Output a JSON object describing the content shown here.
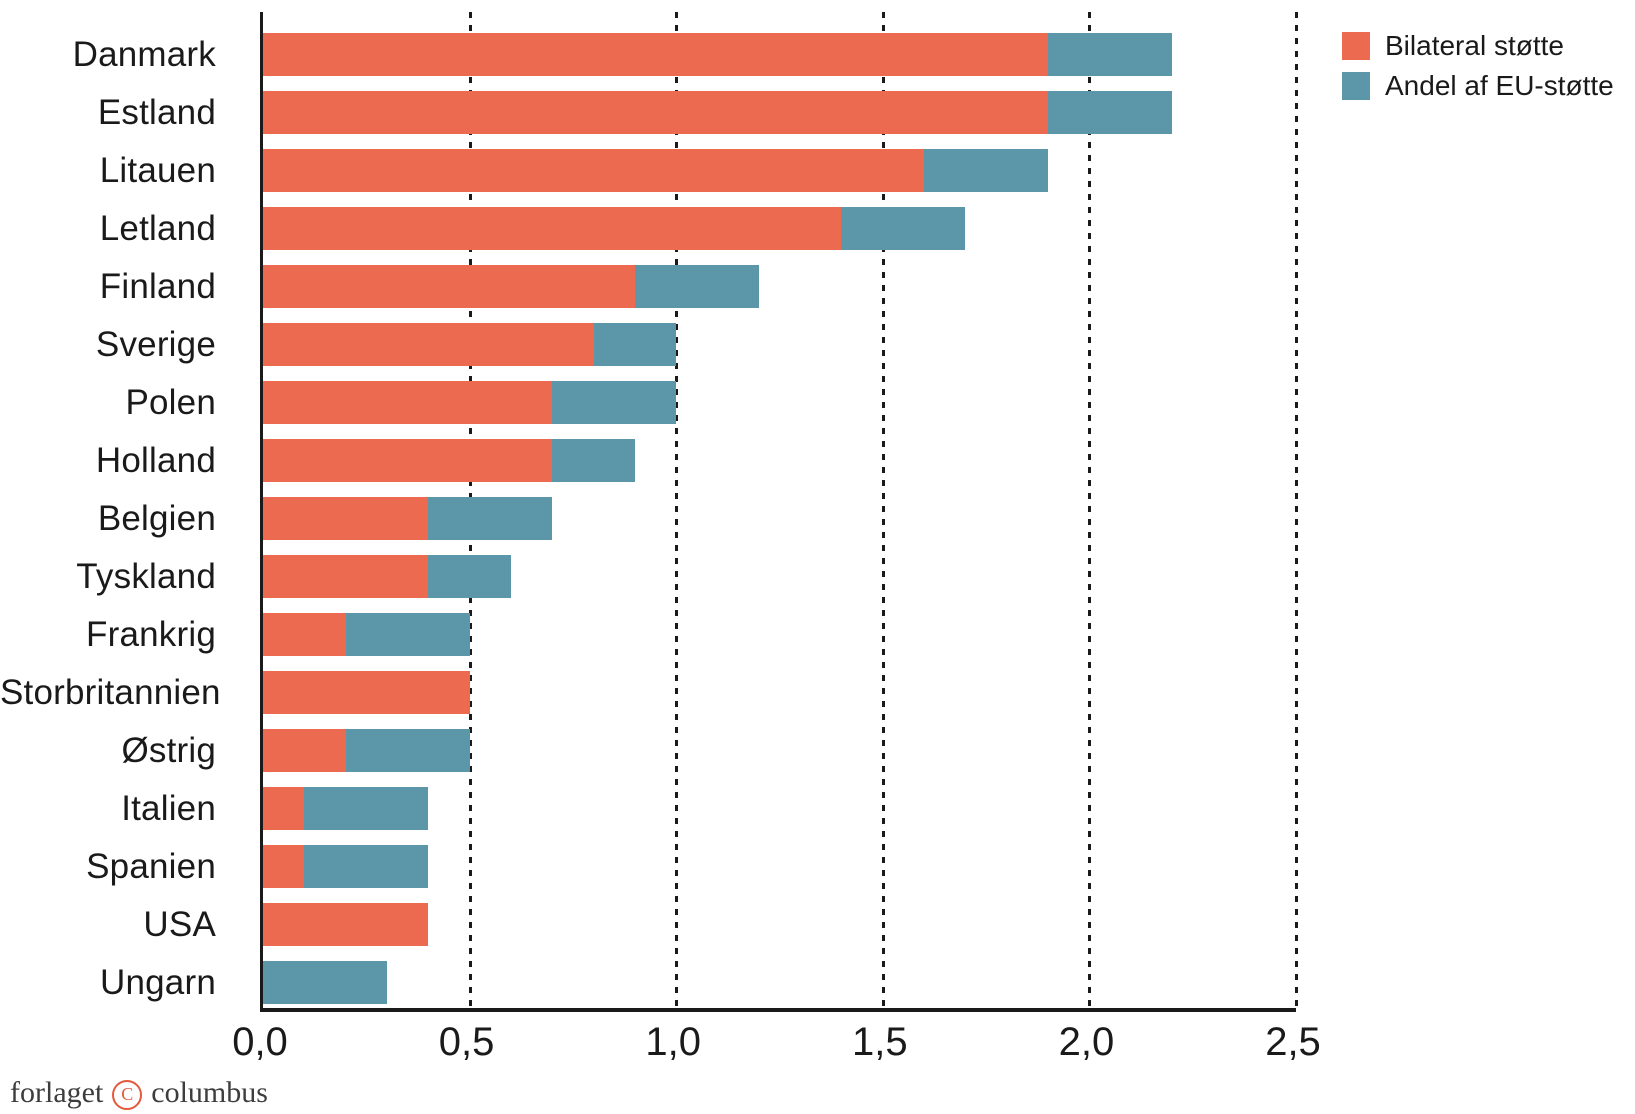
{
  "legend": {
    "items": [
      {
        "label": "Bilateral støtte",
        "color": "#EC6A4F"
      },
      {
        "label": "Andel af EU-støtte",
        "color": "#5B97A9"
      }
    ]
  },
  "footer": {
    "word_left": "forlaget",
    "copyright_letter": "C",
    "word_right": "columbus",
    "accent_color": "#e4593b"
  },
  "chart_data": {
    "type": "bar",
    "orientation": "horizontal",
    "stacked": true,
    "title": "",
    "xlabel": "",
    "ylabel": "",
    "xlim": [
      0,
      2.5
    ],
    "grid": "vertical-dashed",
    "legend_position": "top-right",
    "categories": [
      "Danmark",
      "Estland",
      "Litauen",
      "Letland",
      "Finland",
      "Sverige",
      "Polen",
      "Holland",
      "Belgien",
      "Tyskland",
      "Frankrig",
      "Storbritannien",
      "Østrig",
      "Italien",
      "Spanien",
      "USA",
      "Ungarn"
    ],
    "series": [
      {
        "name": "Bilateral støtte",
        "color": "#EC6A4F",
        "values": [
          1.9,
          1.9,
          1.6,
          1.4,
          0.9,
          0.8,
          0.7,
          0.7,
          0.4,
          0.4,
          0.2,
          0.5,
          0.2,
          0.1,
          0.1,
          0.4,
          0.0
        ]
      },
      {
        "name": "Andel af EU-støtte",
        "color": "#5B97A9",
        "values": [
          0.3,
          0.3,
          0.3,
          0.3,
          0.3,
          0.2,
          0.3,
          0.2,
          0.3,
          0.2,
          0.3,
          0.0,
          0.3,
          0.3,
          0.3,
          0.0,
          0.3
        ]
      }
    ],
    "totals": [
      2.2,
      2.2,
      1.9,
      1.7,
      1.2,
      1.0,
      1.0,
      0.9,
      0.7,
      0.6,
      0.5,
      0.5,
      0.5,
      0.4,
      0.4,
      0.4,
      0.3
    ],
    "x_ticks": [
      "0,0",
      "0,5",
      "1,0",
      "1,5",
      "2,0",
      "2,5"
    ],
    "x_tick_values": [
      0,
      0.5,
      1.0,
      1.5,
      2.0,
      2.5
    ]
  }
}
